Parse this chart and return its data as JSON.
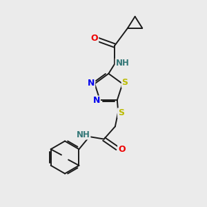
{
  "background_color": "#ebebeb",
  "bond_color": "#1a1a1a",
  "atom_colors": {
    "N": "#0000ee",
    "O": "#ee0000",
    "S": "#bbbb00",
    "C": "#1a1a1a",
    "H": "#337777"
  },
  "figsize": [
    3.0,
    3.0
  ],
  "dpi": 100
}
